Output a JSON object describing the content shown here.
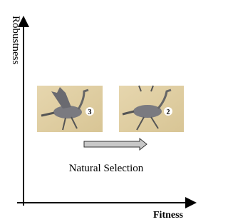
{
  "axes": {
    "y_label": "Robustness",
    "x_label": "Fitness"
  },
  "panels": [
    {
      "label": "3"
    },
    {
      "label": "2"
    }
  ],
  "caption": "Natural Selection"
}
